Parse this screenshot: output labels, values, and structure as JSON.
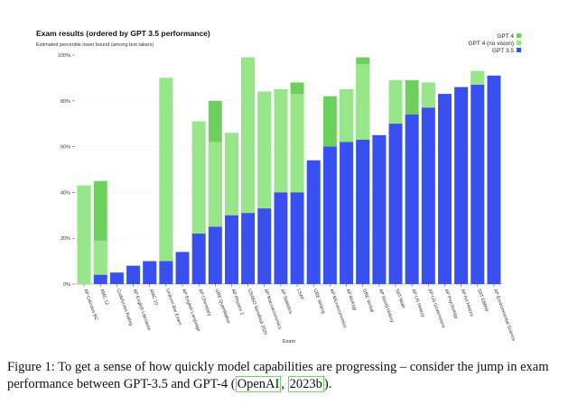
{
  "chart_data": {
    "type": "bar",
    "stacked": "overlay",
    "title": "Exam results (ordered by GPT 3.5 performance)",
    "subtitle": "Estimated percentile lower bound (among test takers)",
    "xlabel": "Exam",
    "ylabel": "",
    "ylim": [
      0,
      100
    ],
    "yticks": [
      0,
      20,
      40,
      60,
      80,
      100
    ],
    "ytick_labels": [
      "0%",
      "20%",
      "40%",
      "60%",
      "80%",
      "100%"
    ],
    "grid": true,
    "legend_position": "top-right",
    "categories": [
      "AP Calculus BC",
      "AMC 12",
      "Codeforces Rating",
      "AP English Literature",
      "AMC 10",
      "Uniform Bar Exam",
      "AP English Language",
      "AP Chemistry",
      "GRE Quantitative",
      "AP Physics 2",
      "USABO Semifinal 2020",
      "AP Macroeconomics",
      "AP Statistics",
      "LSAT",
      "GRE Writing",
      "AP Microeconomics",
      "AP Biology",
      "GRE Verbal",
      "AP World History",
      "SAT Math",
      "AP US History",
      "AP US Government",
      "AP Psychology",
      "AP Art History",
      "SAT EBRW",
      "AP Environmental Science"
    ],
    "series": [
      {
        "name": "GPT 4",
        "color": "#6dcf5e",
        "values": [
          43,
          45,
          5,
          8,
          10,
          90,
          14,
          71,
          80,
          66,
          99,
          84,
          85,
          88,
          54,
          82,
          85,
          99,
          65,
          89,
          89,
          88,
          83,
          86,
          93,
          91
        ]
      },
      {
        "name": "GPT 4 (no vision)",
        "color": "#98e68a",
        "values": [
          43,
          19,
          5,
          8,
          10,
          90,
          14,
          71,
          62,
          66,
          99,
          84,
          85,
          83,
          54,
          60,
          85,
          96,
          65,
          89,
          74,
          88,
          83,
          86,
          93,
          91
        ]
      },
      {
        "name": "GPT 3.5",
        "color": "#3a4ff0",
        "values": [
          0,
          4,
          5,
          8,
          10,
          10,
          14,
          22,
          25,
          30,
          31,
          33,
          40,
          40,
          54,
          60,
          62,
          63,
          65,
          70,
          74,
          77,
          83,
          86,
          87,
          91
        ]
      }
    ]
  },
  "caption": {
    "text": "Figure 1: To get a sense of how quickly model capabilities are progressing – consider the jump in exam performance between GPT-3.5 and GPT-4 (",
    "cite_author": "OpenAI",
    "cite_sep": ", ",
    "cite_year": "2023b",
    "text_end": ")."
  }
}
